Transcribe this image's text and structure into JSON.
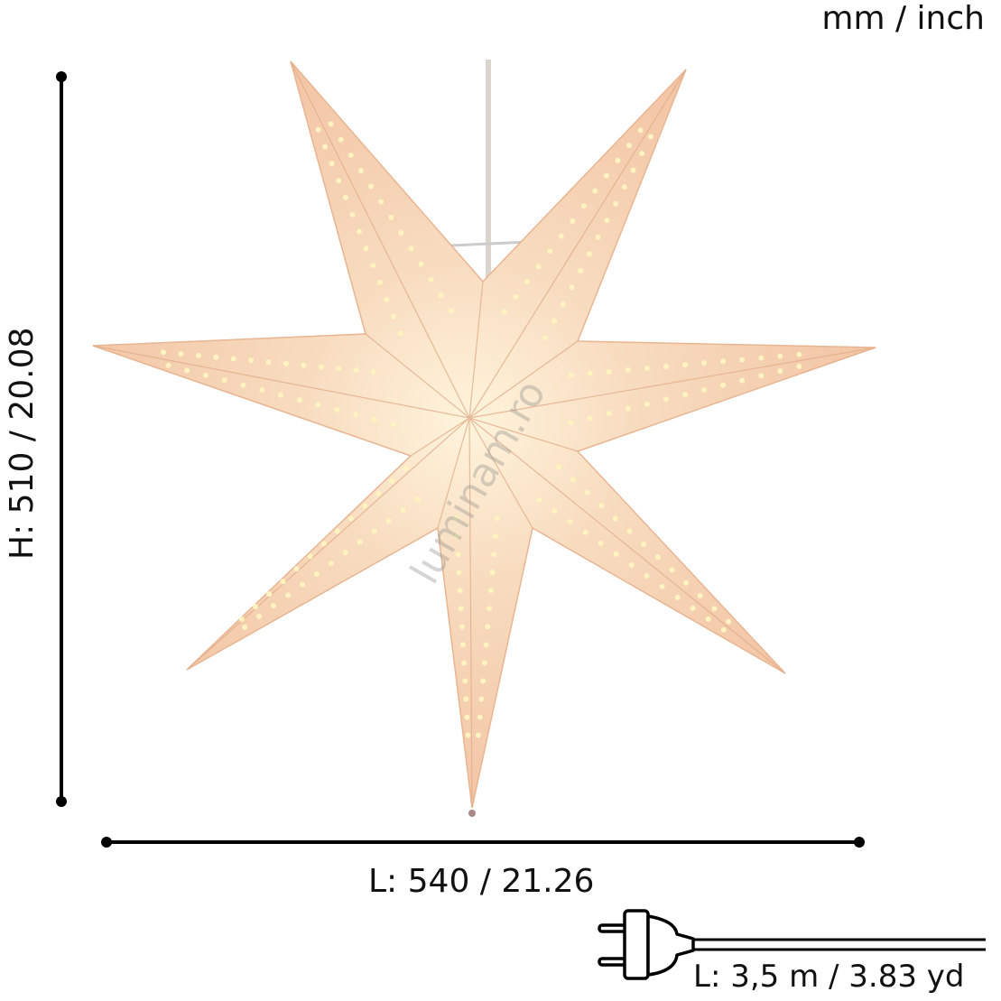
{
  "units": "mm / inch",
  "height_label": "H: 510 / 20.08",
  "width_label": "L: 540 / 21.26",
  "cable_label": "L: 3,5 m / 3.83 yd",
  "watermark": "luminam.ro",
  "product": {
    "points": 7,
    "color": "#f4c9a8",
    "highlight": "#fbe6c8",
    "hole_color": "#fff3c0"
  },
  "icons": [
    "plug-icon",
    "cable-icon",
    "dimension-line-icon"
  ]
}
